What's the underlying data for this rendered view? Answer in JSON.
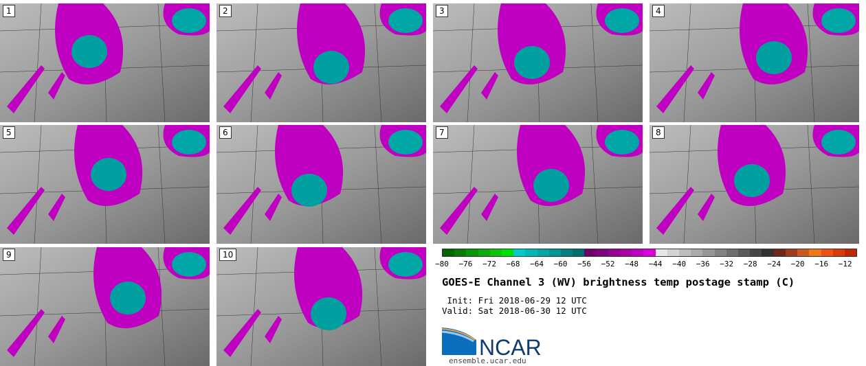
{
  "panels": [
    {
      "label": "1"
    },
    {
      "label": "2"
    },
    {
      "label": "3"
    },
    {
      "label": "4"
    },
    {
      "label": "5"
    },
    {
      "label": "6"
    },
    {
      "label": "7"
    },
    {
      "label": "8"
    },
    {
      "label": "9"
    },
    {
      "label": "10"
    }
  ],
  "colorbar": {
    "min": -80,
    "max": -10,
    "step": 2,
    "tick_labels": [
      "−80",
      "−76",
      "−72",
      "−68",
      "−64",
      "−60",
      "−56",
      "−52",
      "−48",
      "−44",
      "−40",
      "−36",
      "−32",
      "−28",
      "−24",
      "−20",
      "−16",
      "−12"
    ],
    "colors": [
      "#006400",
      "#067c06",
      "#0a940a",
      "#0aab0a",
      "#0ac40a",
      "#00e000",
      "#00cccc",
      "#00b8b8",
      "#00a6a6",
      "#009494",
      "#008080",
      "#006e6e",
      "#6e006e",
      "#820082",
      "#960096",
      "#aa00aa",
      "#c000c0",
      "#d800d8",
      "#e6e6e6",
      "#d2d2d2",
      "#bebebe",
      "#aaaaaa",
      "#969696",
      "#828282",
      "#6e6e6e",
      "#5a5a5a",
      "#464646",
      "#323232",
      "#6e2814",
      "#a03c1e",
      "#c85a1e",
      "#f07814",
      "#f05014",
      "#d83c0a",
      "#c02800"
    ]
  },
  "title": "GOES-E Channel 3 (WV) brightness temp postage stamp (C)",
  "init": " Init: Fri 2018-06-29 12 UTC",
  "valid": "Valid: Sat 2018-06-30 12 UTC",
  "logo": {
    "text": "NCAR"
  },
  "url": "ensemble.ucar.edu"
}
